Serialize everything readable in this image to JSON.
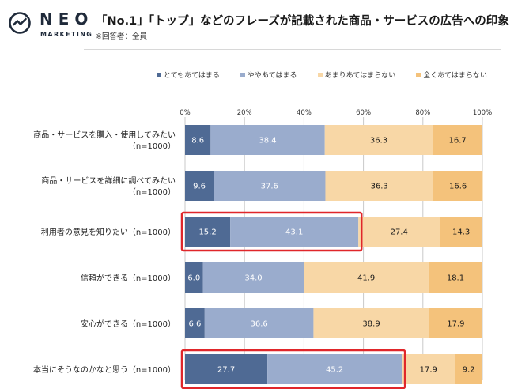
{
  "logo": {
    "name": "NEO",
    "sub": "MARKETING"
  },
  "header": {
    "title": "「No.1」「トップ」などのフレーズが記載された商品・サービスの広告への印象",
    "subtitle": "※回答者：全員"
  },
  "colors": {
    "series": [
      "#4f6a94",
      "#9aaccd",
      "#f8d7a6",
      "#f4c27b"
    ],
    "highlight": "#e0262a",
    "grid": "#c9c9c9"
  },
  "chart_data": {
    "type": "bar",
    "orientation": "horizontal",
    "stacked": true,
    "xlim": [
      0,
      100
    ],
    "x_ticks": [
      "0%",
      "20%",
      "40%",
      "60%",
      "80%",
      "100%"
    ],
    "legend_position": "top",
    "categories": [
      [
        "商品・サービスを購入・使用してみたい",
        "（n=1000）"
      ],
      [
        "商品・サービスを詳細に調べてみたい",
        "（n=1000）"
      ],
      [
        "利用者の意見を知りたい（n=1000）"
      ],
      [
        "信頼ができる（n=1000）"
      ],
      [
        "安心ができる（n=1000）"
      ],
      [
        "本当にそうなのかなと思う（n=1000）"
      ]
    ],
    "series": [
      {
        "name": "とてもあてはまる",
        "values": [
          8.6,
          9.6,
          15.2,
          6.0,
          6.6,
          27.7
        ]
      },
      {
        "name": "ややあてはまる",
        "values": [
          38.4,
          37.6,
          43.1,
          34.0,
          36.6,
          45.2
        ]
      },
      {
        "name": "あまりあてはまらない",
        "values": [
          36.3,
          36.3,
          27.4,
          41.9,
          38.9,
          17.9
        ]
      },
      {
        "name": "全くあてはまらない",
        "values": [
          16.7,
          16.6,
          14.3,
          18.1,
          17.9,
          9.2
        ]
      }
    ],
    "highlighted_rows": [
      2,
      5
    ]
  }
}
